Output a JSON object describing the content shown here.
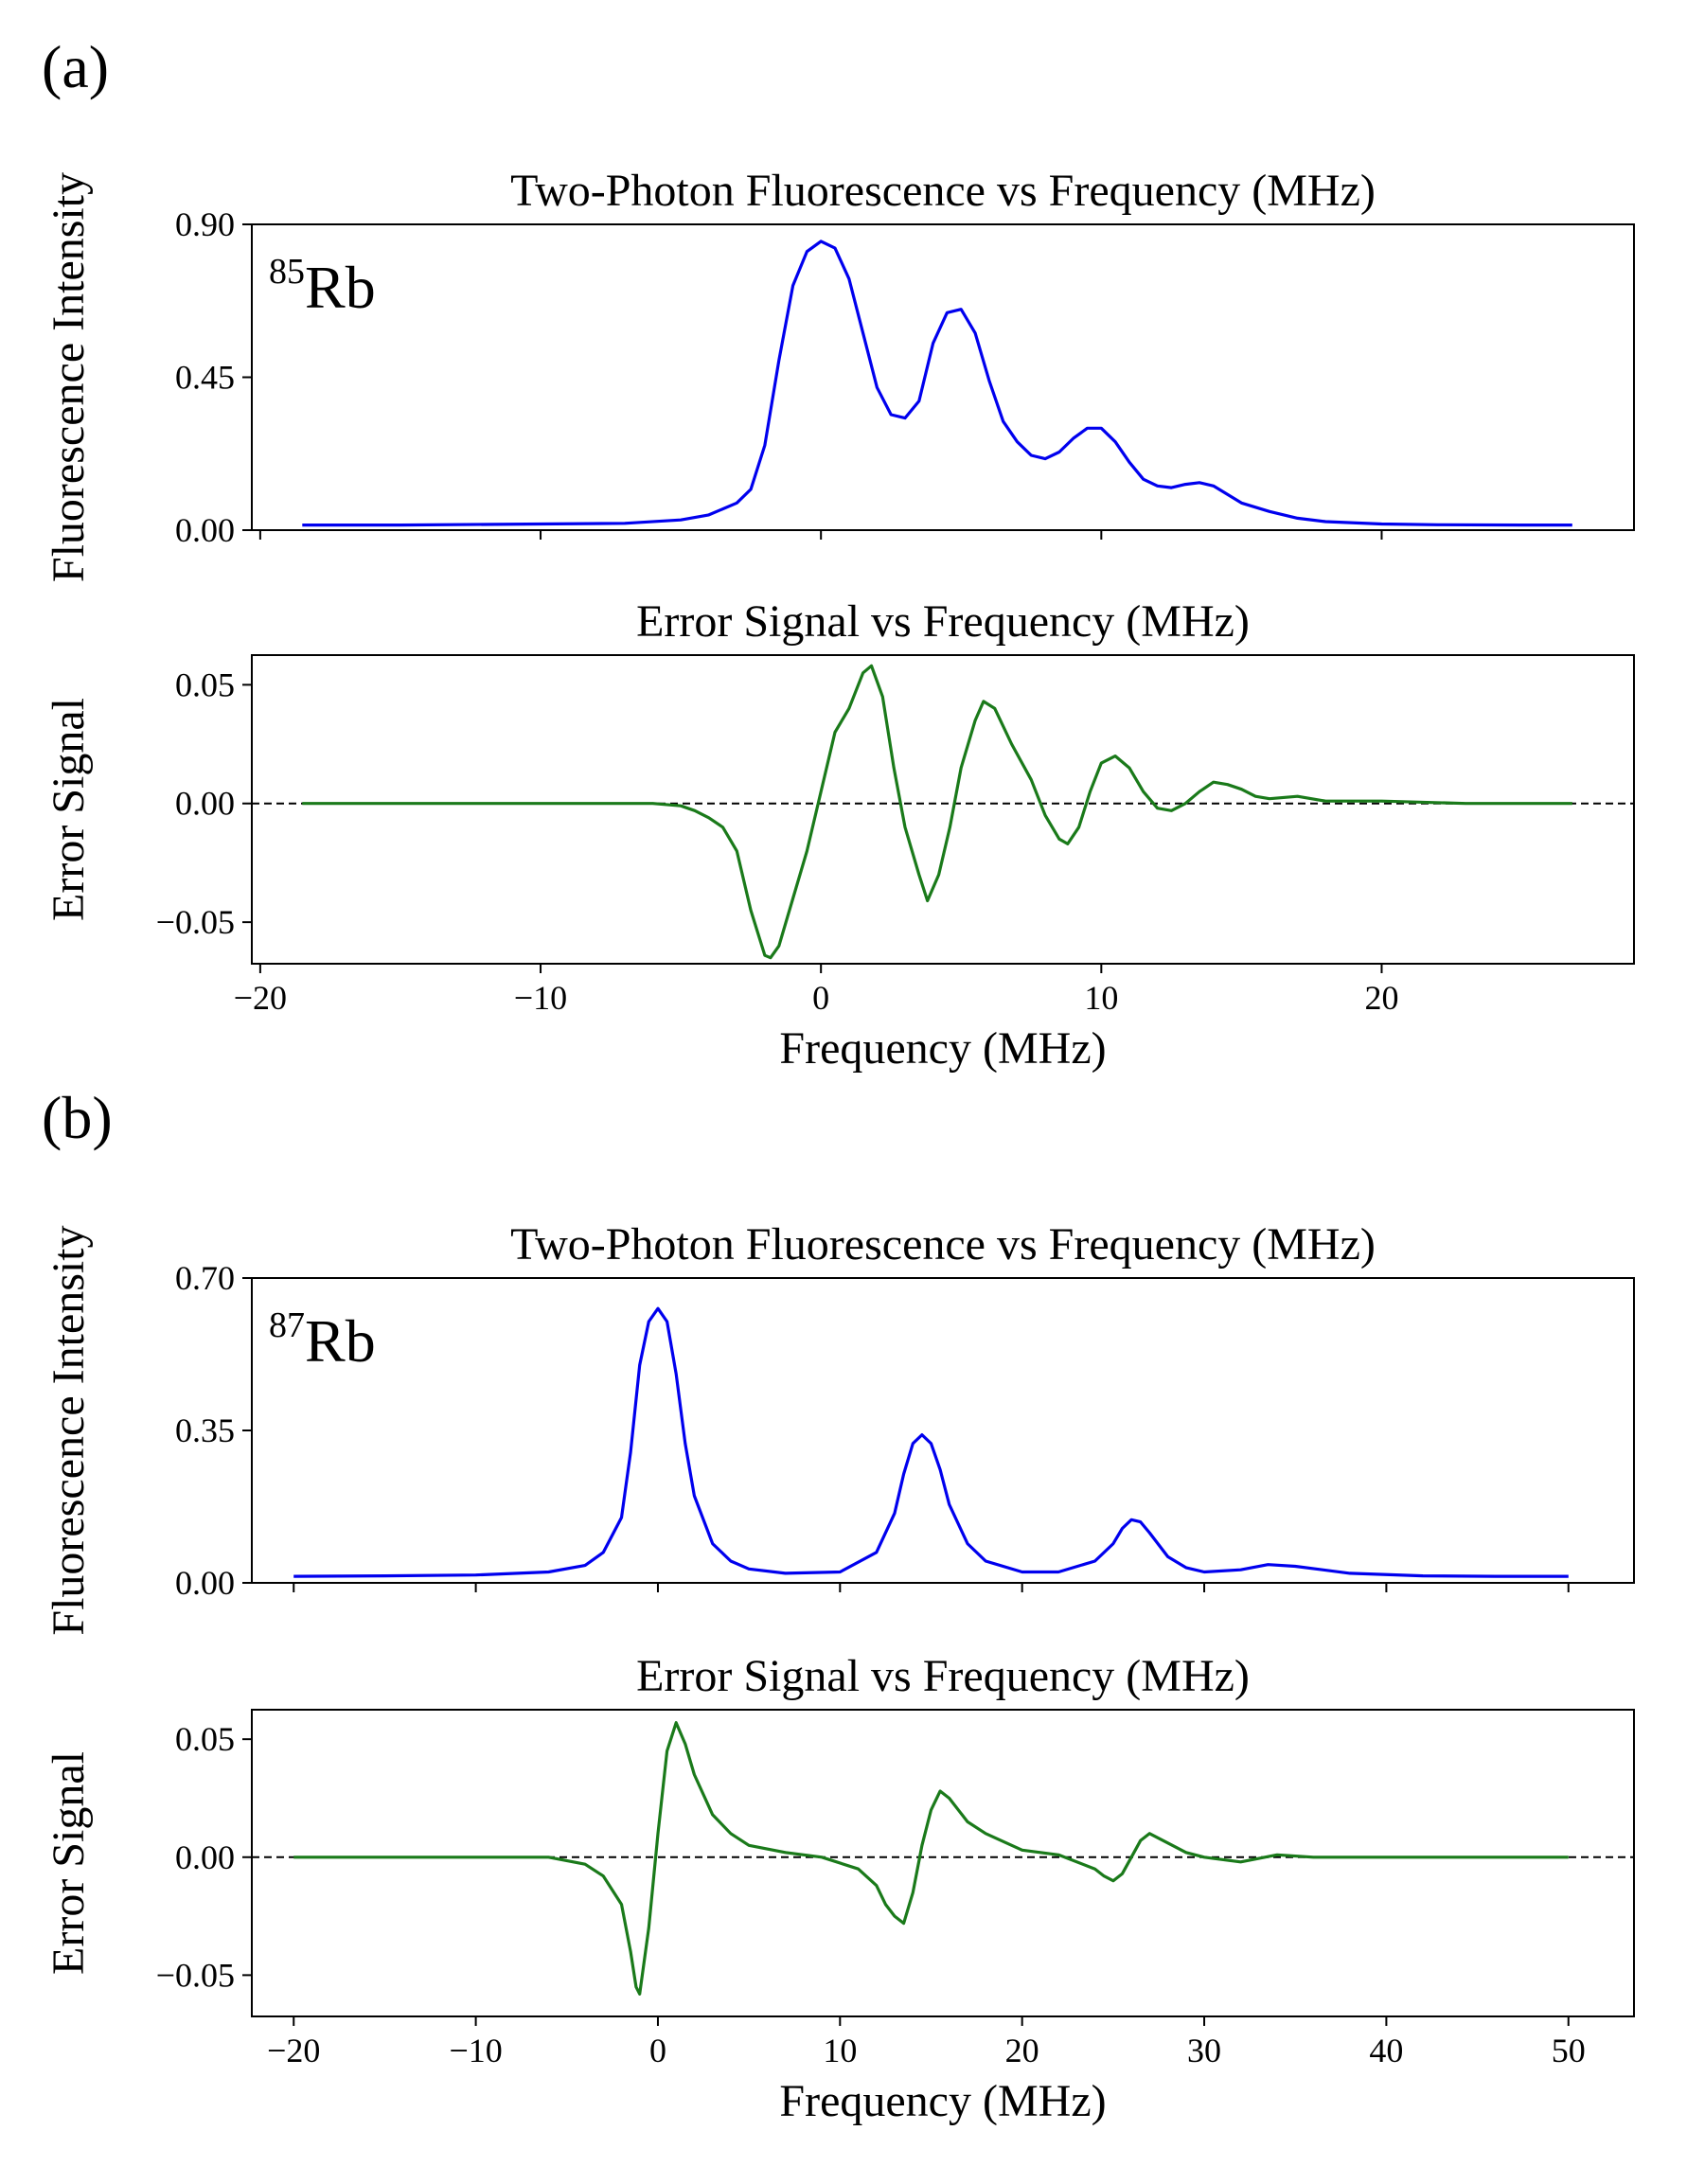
{
  "figure": {
    "panel_a_label": "(a)",
    "panel_b_label": "(b)"
  },
  "chart_data": [
    {
      "id": "a-fluor",
      "type": "line",
      "title": "Two-Photon Fluorescence vs Frequency (MHz)",
      "ylabel": "Fluorescence Intensity",
      "xlabel": "",
      "annotation": {
        "sup": "85",
        "text": "Rb"
      },
      "xlim": [
        -20.3,
        29
      ],
      "ylim": [
        0,
        0.9
      ],
      "xticks": [
        -20,
        -10,
        0,
        10,
        20
      ],
      "show_xticklabels": false,
      "yticks": [
        0.0,
        0.45,
        0.9
      ],
      "yticklabels": [
        "0.00",
        "0.45",
        "0.90"
      ],
      "zero_line": false,
      "series": [
        {
          "name": "fluorescence",
          "color": "#0000ee",
          "x": [
            -18.5,
            -15,
            -10,
            -7,
            -5,
            -4,
            -3,
            -2.5,
            -2,
            -1.5,
            -1,
            -0.5,
            0,
            0.5,
            1,
            1.5,
            2,
            2.5,
            3,
            3.5,
            4,
            4.5,
            5,
            5.5,
            6,
            6.5,
            7,
            7.5,
            8,
            8.5,
            9,
            9.5,
            10,
            10.5,
            11,
            11.5,
            12,
            12.5,
            13,
            13.5,
            14,
            15,
            16,
            17,
            18,
            20,
            22,
            25,
            26.8
          ],
          "y": [
            0.015,
            0.015,
            0.018,
            0.02,
            0.03,
            0.045,
            0.08,
            0.12,
            0.25,
            0.5,
            0.72,
            0.82,
            0.85,
            0.83,
            0.74,
            0.58,
            0.42,
            0.34,
            0.33,
            0.38,
            0.55,
            0.64,
            0.65,
            0.58,
            0.44,
            0.32,
            0.26,
            0.22,
            0.21,
            0.23,
            0.27,
            0.3,
            0.3,
            0.26,
            0.2,
            0.15,
            0.13,
            0.125,
            0.135,
            0.14,
            0.13,
            0.08,
            0.055,
            0.035,
            0.025,
            0.018,
            0.016,
            0.015,
            0.015
          ]
        }
      ]
    },
    {
      "id": "a-error",
      "type": "line",
      "title": "Error Signal vs Frequency (MHz)",
      "ylabel": "Error Signal",
      "xlabel": "Frequency (MHz)",
      "xlim": [
        -20.3,
        29
      ],
      "ylim": [
        -0.0675,
        0.0625
      ],
      "xticks": [
        -20,
        -10,
        0,
        10,
        20
      ],
      "xticklabels": [
        "−20",
        "−10",
        "0",
        "10",
        "20"
      ],
      "show_xticklabels": true,
      "yticks": [
        -0.05,
        0.0,
        0.05
      ],
      "yticklabels": [
        "−0.05",
        "0.00",
        "0.05"
      ],
      "zero_line": true,
      "series": [
        {
          "name": "error signal",
          "color": "#1a7a1a",
          "x": [
            -18.5,
            -15,
            -12,
            -9,
            -6,
            -5,
            -4.5,
            -4,
            -3.5,
            -3,
            -2.5,
            -2,
            -1.8,
            -1.5,
            -1,
            -0.5,
            0,
            0.5,
            1,
            1.5,
            1.8,
            2.2,
            2.6,
            3,
            3.5,
            3.8,
            4.2,
            4.6,
            5,
            5.5,
            5.8,
            6.2,
            6.8,
            7.5,
            8,
            8.5,
            8.8,
            9.2,
            9.6,
            10,
            10.5,
            11,
            11.5,
            12,
            12.5,
            13,
            13.5,
            14,
            14.5,
            15,
            15.5,
            16,
            17,
            18,
            20,
            23,
            26.8
          ],
          "y": [
            0,
            0,
            0,
            0,
            0,
            -0.001,
            -0.003,
            -0.006,
            -0.01,
            -0.02,
            -0.045,
            -0.064,
            -0.065,
            -0.06,
            -0.04,
            -0.02,
            0.005,
            0.03,
            0.04,
            0.055,
            0.058,
            0.045,
            0.015,
            -0.01,
            -0.03,
            -0.041,
            -0.03,
            -0.01,
            0.015,
            0.035,
            0.043,
            0.04,
            0.025,
            0.01,
            -0.005,
            -0.015,
            -0.017,
            -0.01,
            0.005,
            0.017,
            0.02,
            0.015,
            0.005,
            -0.002,
            -0.003,
            0.0,
            0.005,
            0.009,
            0.008,
            0.006,
            0.003,
            0.002,
            0.003,
            0.001,
            0.001,
            0,
            0
          ]
        }
      ]
    },
    {
      "id": "b-fluor",
      "type": "line",
      "title": "Two-Photon Fluorescence vs Frequency (MHz)",
      "ylabel": "Fluorescence Intensity",
      "xlabel": "",
      "annotation": {
        "sup": "87",
        "text": "Rb"
      },
      "xlim": [
        -22.3,
        53.6
      ],
      "ylim": [
        0,
        0.7
      ],
      "xticks": [
        -20,
        -10,
        0,
        10,
        20,
        30,
        40,
        50
      ],
      "show_xticklabels": false,
      "yticks": [
        0.0,
        0.35,
        0.7
      ],
      "yticklabels": [
        "0.00",
        "0.35",
        "0.70"
      ],
      "zero_line": false,
      "series": [
        {
          "name": "fluorescence",
          "color": "#0000ee",
          "x": [
            -20,
            -15,
            -10,
            -6,
            -4,
            -3,
            -2,
            -1.5,
            -1,
            -0.5,
            0,
            0.5,
            1,
            1.5,
            2,
            3,
            4,
            5,
            7,
            10,
            12,
            13,
            13.5,
            14,
            14.5,
            15,
            15.5,
            16,
            17,
            18,
            20,
            22,
            24,
            25,
            25.5,
            26,
            26.5,
            27,
            28,
            29,
            30,
            32,
            33.5,
            35,
            38,
            42,
            46,
            50
          ],
          "y": [
            0.015,
            0.016,
            0.018,
            0.025,
            0.04,
            0.07,
            0.15,
            0.3,
            0.5,
            0.6,
            0.63,
            0.6,
            0.48,
            0.32,
            0.2,
            0.09,
            0.05,
            0.032,
            0.022,
            0.025,
            0.07,
            0.16,
            0.25,
            0.32,
            0.34,
            0.32,
            0.26,
            0.18,
            0.09,
            0.05,
            0.025,
            0.025,
            0.05,
            0.09,
            0.125,
            0.145,
            0.14,
            0.115,
            0.06,
            0.035,
            0.025,
            0.03,
            0.042,
            0.038,
            0.022,
            0.016,
            0.015,
            0.015
          ]
        }
      ]
    },
    {
      "id": "b-error",
      "type": "line",
      "title": "Error Signal vs Frequency (MHz)",
      "ylabel": "Error Signal",
      "xlabel": "Frequency (MHz)",
      "xlim": [
        -22.3,
        53.6
      ],
      "ylim": [
        -0.0675,
        0.0625
      ],
      "xticks": [
        -20,
        -10,
        0,
        10,
        20,
        30,
        40,
        50
      ],
      "xticklabels": [
        "−20",
        "−10",
        "0",
        "10",
        "20",
        "30",
        "40",
        "50"
      ],
      "show_xticklabels": true,
      "yticks": [
        -0.05,
        0.0,
        0.05
      ],
      "yticklabels": [
        "−0.05",
        "0.00",
        "0.05"
      ],
      "zero_line": true,
      "series": [
        {
          "name": "error signal",
          "color": "#1a7a1a",
          "x": [
            -20,
            -15,
            -10,
            -6,
            -4,
            -3,
            -2,
            -1.5,
            -1.2,
            -1,
            -0.5,
            0,
            0.5,
            1,
            1.5,
            2,
            3,
            4,
            5,
            7,
            9,
            11,
            12,
            12.5,
            13,
            13.5,
            14,
            14.5,
            15,
            15.5,
            16,
            17,
            18,
            20,
            22,
            24,
            24.5,
            25,
            25.5,
            26,
            26.5,
            27,
            28,
            29,
            30,
            32,
            34,
            36,
            40,
            45,
            50
          ],
          "y": [
            0,
            0,
            0,
            0,
            -0.003,
            -0.008,
            -0.02,
            -0.04,
            -0.055,
            -0.058,
            -0.03,
            0.01,
            0.045,
            0.057,
            0.048,
            0.035,
            0.018,
            0.01,
            0.005,
            0.002,
            0.0,
            -0.005,
            -0.012,
            -0.02,
            -0.025,
            -0.028,
            -0.015,
            0.005,
            0.02,
            0.028,
            0.025,
            0.015,
            0.01,
            0.003,
            0.001,
            -0.005,
            -0.008,
            -0.01,
            -0.007,
            0.0,
            0.007,
            0.01,
            0.006,
            0.002,
            0.0,
            -0.002,
            0.001,
            0.0,
            0,
            0,
            0
          ]
        }
      ]
    }
  ]
}
